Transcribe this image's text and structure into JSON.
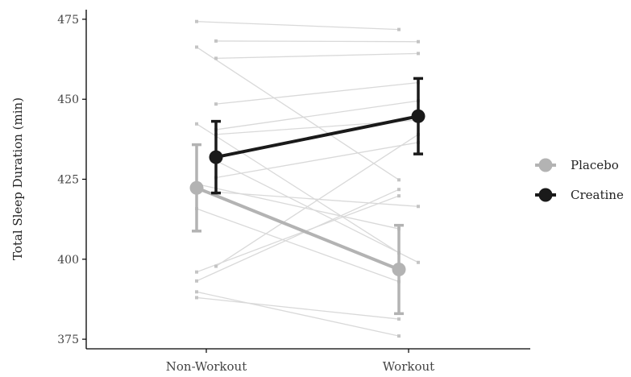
{
  "chart_data": {
    "type": "line",
    "ylabel": "Total Sleep Duration (min)",
    "xlabel": "",
    "categories": [
      "Non-Workout",
      "Workout"
    ],
    "ylim": [
      372,
      478
    ],
    "yticks": [
      375,
      400,
      425,
      450,
      475
    ],
    "grid": false,
    "legend_position": "right",
    "series": [
      {
        "name": "Placebo",
        "color": "#b3b3b3",
        "mean": [
          422.3,
          396.8
        ],
        "error": [
          13.5,
          13.8
        ]
      },
      {
        "name": "Creatine",
        "color": "#1a1a1a",
        "mean": [
          431.9,
          444.7
        ],
        "error": [
          11.2,
          11.8
        ]
      }
    ],
    "individuals_color": "#d9d9d9",
    "individuals": [
      {
        "group": "Placebo",
        "values": [
          474.3,
          471.8
        ]
      },
      {
        "group": "Placebo",
        "values": [
          466.3,
          424.8
        ]
      },
      {
        "group": "Placebo",
        "values": [
          442.3,
          402.0
        ]
      },
      {
        "group": "Placebo",
        "values": [
          423.5,
          409.5
        ]
      },
      {
        "group": "Placebo",
        "values": [
          415.8,
          393.0
        ]
      },
      {
        "group": "Placebo",
        "values": [
          396.0,
          419.8
        ]
      },
      {
        "group": "Placebo",
        "values": [
          393.2,
          421.8
        ]
      },
      {
        "group": "Placebo",
        "values": [
          389.8,
          376.0
        ]
      },
      {
        "group": "Placebo",
        "values": [
          388.0,
          381.3
        ]
      },
      {
        "group": "Creatine",
        "values": [
          468.2,
          468.0
        ]
      },
      {
        "group": "Creatine",
        "values": [
          462.8,
          464.3
        ]
      },
      {
        "group": "Creatine",
        "values": [
          448.5,
          455.2
        ]
      },
      {
        "group": "Creatine",
        "values": [
          440.5,
          449.5
        ]
      },
      {
        "group": "Creatine",
        "values": [
          439.0,
          443.5
        ]
      },
      {
        "group": "Creatine",
        "values": [
          430.8,
          399.0
        ]
      },
      {
        "group": "Creatine",
        "values": [
          425.5,
          436.5
        ]
      },
      {
        "group": "Creatine",
        "values": [
          421.0,
          416.5
        ]
      },
      {
        "group": "Creatine",
        "values": [
          397.8,
          439.0
        ]
      }
    ]
  }
}
